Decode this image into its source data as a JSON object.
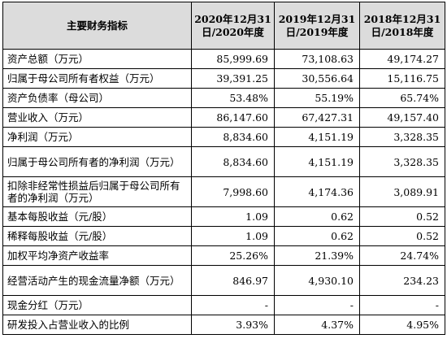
{
  "table": {
    "header": [
      "主要财务指标",
      "2020年12月31日/2020年度",
      "2019年12月31日/2019年度",
      "2018年12月31日/2018年度"
    ],
    "rows": [
      {
        "label": "资产总额（万元）",
        "v2020": "85,999.69",
        "v2019": "73,108.63",
        "v2018": "49,174.27"
      },
      {
        "label": "归属于母公司所有者权益（万元）",
        "v2020": "39,391.25",
        "v2019": "30,556.64",
        "v2018": "15,116.75"
      },
      {
        "label": "资产负债率（母公司）",
        "v2020": "53.48%",
        "v2019": "55.19%",
        "v2018": "65.74%"
      },
      {
        "label": "营业收入（万元）",
        "v2020": "86,147.60",
        "v2019": "67,427.31",
        "v2018": "49,157.40"
      },
      {
        "label": "净利润（万元）",
        "v2020": "8,834.60",
        "v2019": "4,151.19",
        "v2018": "3,328.35"
      },
      {
        "label": "归属于母公司所有者的净利润（万元）",
        "v2020": "8,834.60",
        "v2019": "4,151.19",
        "v2018": "3,328.35"
      },
      {
        "label": "扣除非经常性损益后归属于母公司所有者的净利润（万元）",
        "v2020": "7,998.60",
        "v2019": "4,174.36",
        "v2018": "3,089.91"
      },
      {
        "label": "基本每股收益（元/股）",
        "v2020": "1.09",
        "v2019": "0.62",
        "v2018": "0.52"
      },
      {
        "label": "稀释每股收益（元/股）",
        "v2020": "1.09",
        "v2019": "0.62",
        "v2018": "0.52"
      },
      {
        "label": "加权平均净资产收益率",
        "v2020": "25.26%",
        "v2019": "21.39%",
        "v2018": "24.74%"
      },
      {
        "label": "经营活动产生的现金流量净额（万元）",
        "v2020": "846.97",
        "v2019": "4,930.10",
        "v2018": "234.23"
      },
      {
        "label": "现金分红（万元）",
        "v2020": "-",
        "v2019": "-",
        "v2018": "-"
      },
      {
        "label": "研发投入占营业收入的比例",
        "v2020": "3.93%",
        "v2019": "4.37%",
        "v2018": "4.95%"
      }
    ]
  },
  "colors": {
    "header_bg": "#dcdcdc",
    "border": "#000000"
  }
}
